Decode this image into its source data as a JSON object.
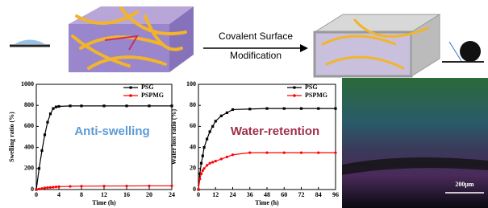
{
  "scheme": {
    "process": [
      "Covalent Surface",
      "Modification"
    ]
  },
  "image": {
    "scale_bar": "200μm"
  },
  "chart_data": [
    {
      "type": "line",
      "xlabel": "Time (h)",
      "ylabel": "Swelling ratio (%)",
      "annotation": {
        "text": "Anti-swelling",
        "color": "#5b9bd5"
      },
      "xlim": [
        0,
        24
      ],
      "xticks": [
        0,
        4,
        8,
        12,
        16,
        20,
        24
      ],
      "ylim": [
        0,
        1000
      ],
      "yticks": [
        0,
        200,
        400,
        600,
        800,
        1000
      ],
      "series": [
        {
          "name": "PSG",
          "color": "#000000",
          "x": [
            0,
            0.5,
            1,
            1.5,
            2,
            2.5,
            3,
            3.5,
            4,
            6,
            8,
            12,
            16,
            20,
            24
          ],
          "values": [
            0,
            200,
            370,
            520,
            640,
            720,
            770,
            785,
            790,
            795,
            795,
            795,
            795,
            795,
            795
          ]
        },
        {
          "name": "PSPMG",
          "color": "#ff0000",
          "x": [
            0,
            0.5,
            1,
            1.5,
            2,
            2.5,
            3,
            3.5,
            4,
            6,
            8,
            12,
            16,
            20,
            24
          ],
          "values": [
            0,
            5,
            10,
            15,
            18,
            20,
            22,
            25,
            28,
            30,
            32,
            33,
            34,
            35,
            35
          ]
        }
      ]
    },
    {
      "type": "line",
      "xlabel": "Time (h)",
      "ylabel": "Water loss ratio (%)",
      "annotation": {
        "text": "Water-retention",
        "color": "#a0304a"
      },
      "xlim": [
        0,
        96
      ],
      "xticks": [
        0,
        12,
        24,
        36,
        48,
        60,
        72,
        84,
        96
      ],
      "ylim": [
        0,
        100
      ],
      "yticks": [
        0,
        20,
        40,
        60,
        80,
        100
      ],
      "series": [
        {
          "name": "PSG",
          "color": "#000000",
          "x": [
            0,
            1,
            2,
            3,
            4,
            6,
            8,
            10,
            12,
            16,
            20,
            24,
            36,
            48,
            60,
            72,
            84,
            96
          ],
          "values": [
            0,
            15,
            25,
            32,
            40,
            48,
            55,
            60,
            65,
            70,
            73,
            76,
            76.5,
            77,
            77,
            77,
            77,
            77
          ]
        },
        {
          "name": "PSPMG",
          "color": "#ff0000",
          "x": [
            0,
            1,
            2,
            3,
            4,
            6,
            8,
            10,
            12,
            16,
            20,
            24,
            36,
            48,
            60,
            72,
            84,
            96
          ],
          "values": [
            0,
            10,
            15,
            18,
            20,
            23,
            25,
            26,
            27,
            29,
            31,
            33,
            35,
            35,
            35,
            35,
            35,
            35
          ]
        }
      ]
    }
  ]
}
